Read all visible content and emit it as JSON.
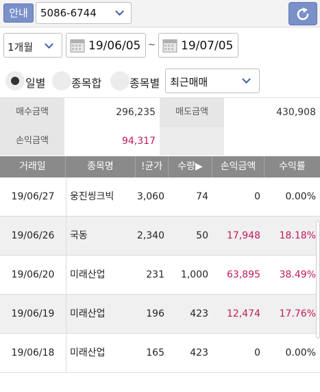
{
  "topbar": {
    "info_label": "안내",
    "account_value": "5086-6744"
  },
  "filters": {
    "period_value": "1개월",
    "date_from": "19/06/05",
    "date_separator": "~",
    "date_to": "19/07/05"
  },
  "view_options": {
    "radios": [
      {
        "label": "일별",
        "selected": true
      },
      {
        "label": "종목합",
        "selected": false
      },
      {
        "label": "종목별",
        "selected": false
      }
    ],
    "sort_value": "최근매매"
  },
  "summary": {
    "buy_label": "매수금액",
    "buy_value": "296,235",
    "sell_label": "매도금액",
    "sell_value": "430,908",
    "pl_label": "손익금액",
    "pl_value": "94,317"
  },
  "table": {
    "headers": [
      "거래일",
      "종목명",
      "!균가",
      "수량▶",
      "손익금액",
      "수익률"
    ],
    "rows": [
      {
        "date": "19/06/27",
        "name": "웅진씽크빅",
        "avg": "3,060",
        "qty": "74",
        "pl": "0",
        "rate": "0.00%",
        "positive": false
      },
      {
        "date": "19/06/26",
        "name": "국동",
        "avg": "2,340",
        "qty": "50",
        "pl": "17,948",
        "rate": "18.18%",
        "positive": true
      },
      {
        "date": "19/06/20",
        "name": "미래산업",
        "avg": "231",
        "qty": "1,000",
        "pl": "63,895",
        "rate": "38.49%",
        "positive": true
      },
      {
        "date": "19/06/19",
        "name": "미래산업",
        "avg": "196",
        "qty": "423",
        "pl": "12,474",
        "rate": "17.76%",
        "positive": true
      },
      {
        "date": "19/06/18",
        "name": "미래산업",
        "avg": "165",
        "qty": "423",
        "pl": "0",
        "rate": "0.00%",
        "positive": false
      }
    ]
  },
  "colors": {
    "accent": "#7a90c9",
    "profit": "#c2185b",
    "header_bg": "#8a8a8a"
  }
}
